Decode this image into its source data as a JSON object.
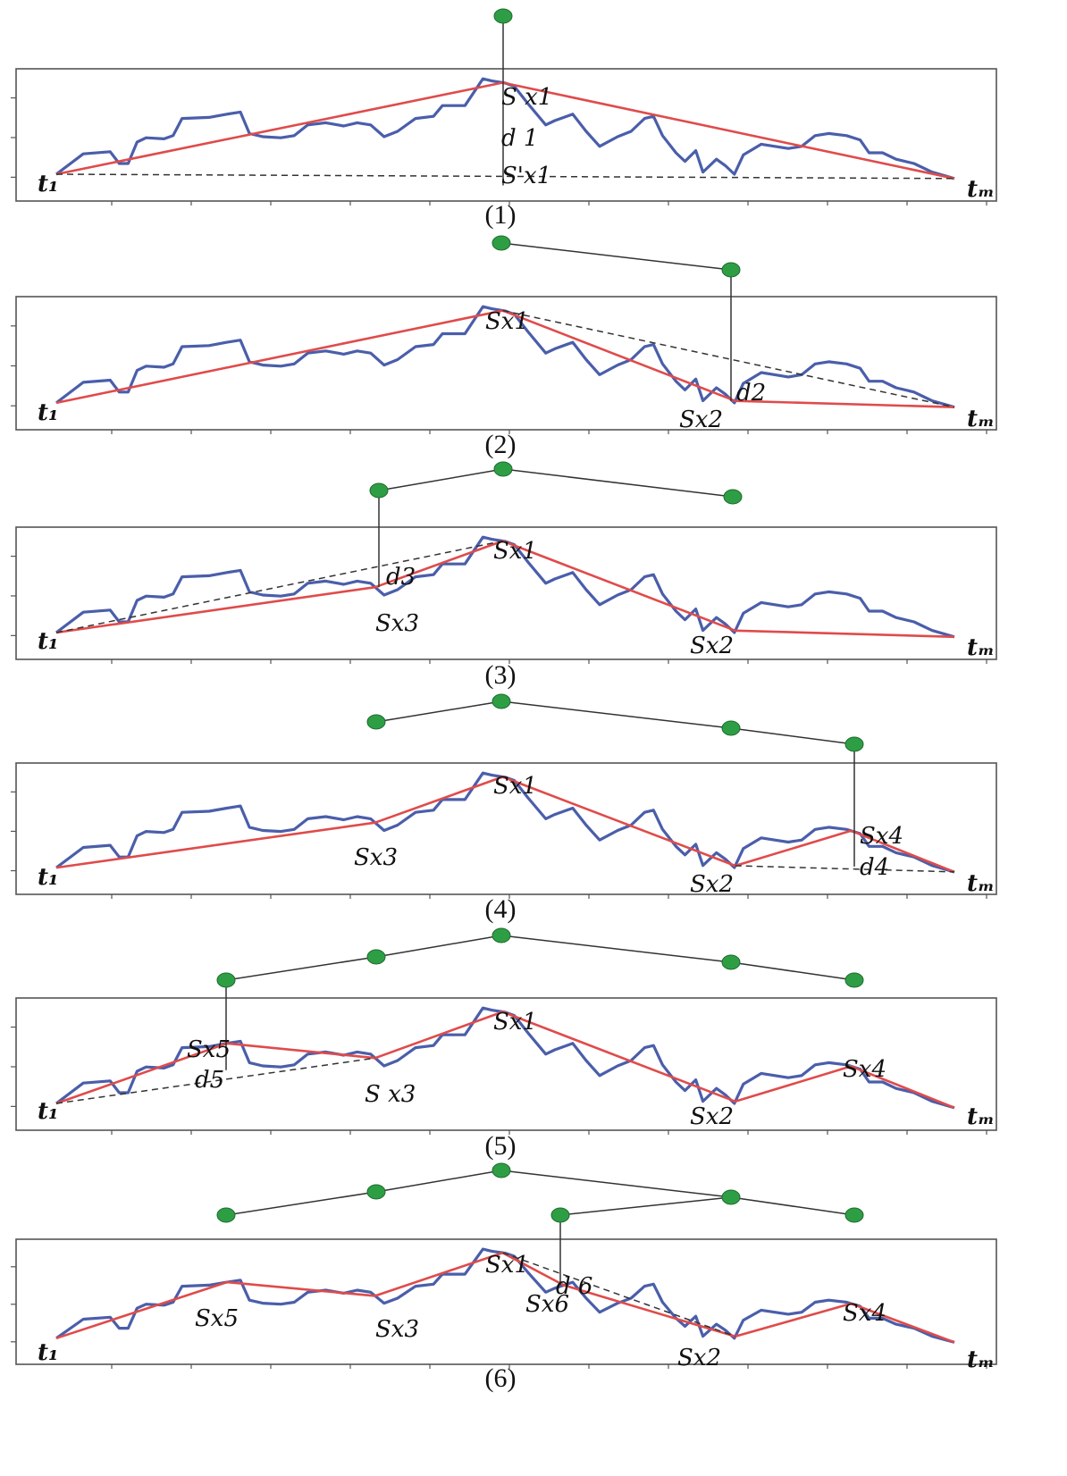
{
  "colors": {
    "series": "#4a5eaa",
    "approx": "#e04b4b",
    "node": "#2e9e45",
    "node_stroke": "#1d6b2e",
    "frame": "#555555",
    "link": "#333333"
  },
  "panels": [
    {
      "caption": "(1)",
      "start_label": "t₁",
      "end_label": "tₘ",
      "labels": [
        "S x1",
        "d 1",
        "S'x1"
      ]
    },
    {
      "caption": "(2)",
      "start_label": "t₁",
      "end_label": "tₘ",
      "labels": [
        "Sx1",
        "d2",
        "Sx2"
      ]
    },
    {
      "caption": "(3)",
      "start_label": "t₁",
      "end_label": "tₘ",
      "labels": [
        "Sx1",
        "d3",
        "Sx3",
        "Sx2"
      ]
    },
    {
      "caption": "(4)",
      "start_label": "t₁",
      "end_label": "tₘ",
      "labels": [
        "Sx1",
        "Sx3",
        "Sx4",
        "d4",
        "Sx2"
      ]
    },
    {
      "caption": "(5)",
      "start_label": "t₁",
      "end_label": "tₘ",
      "labels": [
        "Sx5",
        "d5",
        "Sx1",
        "S x3",
        "Sx4",
        "Sx2"
      ]
    },
    {
      "caption": "(6)",
      "start_label": "t₁",
      "end_label": "tₘ",
      "labels": [
        "Sx1",
        "d 6",
        "Sx6",
        "Sx5",
        "Sx3",
        "Sx4",
        "Sx2"
      ]
    }
  ]
}
